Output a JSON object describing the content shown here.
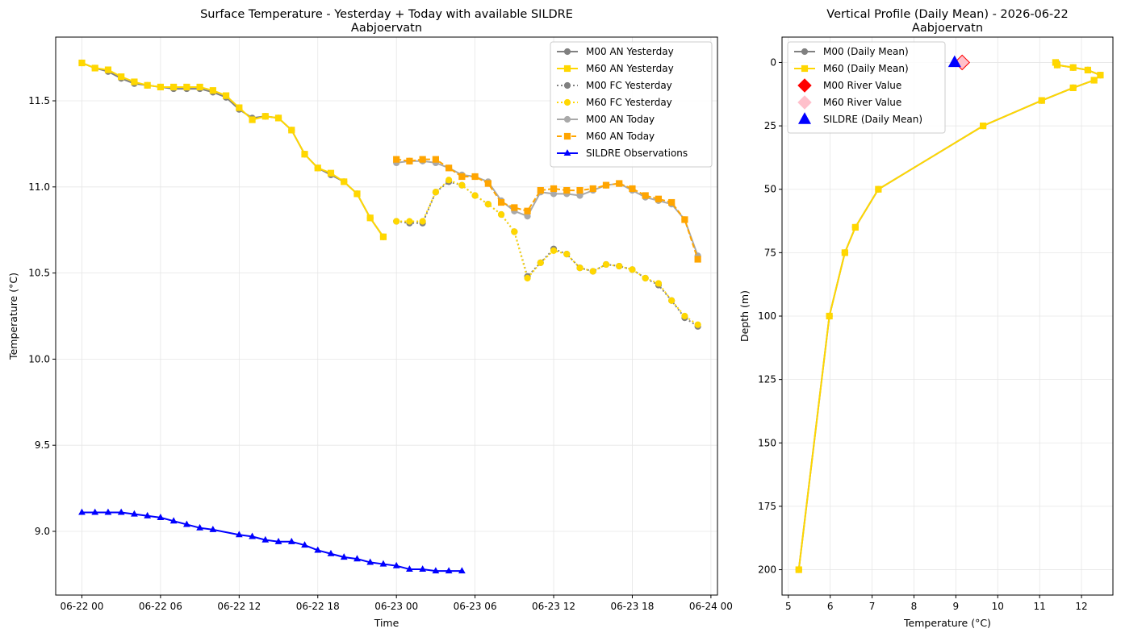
{
  "chart_data": [
    {
      "type": "line",
      "title": "Surface Temperature - Yesterday + Today with available SILDRE",
      "subtitle": "Aabjoervatn",
      "xlabel": "Time",
      "ylabel": "Temperature (°C)",
      "x_unit": "hours since 06-22 00",
      "xlim": [
        -2,
        48.5
      ],
      "ylim": [
        8.63,
        11.87
      ],
      "xticks": [
        {
          "x": 0,
          "label": "06-22 00"
        },
        {
          "x": 6,
          "label": "06-22 06"
        },
        {
          "x": 12,
          "label": "06-22 12"
        },
        {
          "x": 18,
          "label": "06-22 18"
        },
        {
          "x": 24,
          "label": "06-23 00"
        },
        {
          "x": 30,
          "label": "06-23 06"
        },
        {
          "x": 36,
          "label": "06-23 12"
        },
        {
          "x": 42,
          "label": "06-23 18"
        },
        {
          "x": 48,
          "label": "06-24 00"
        }
      ],
      "yticks": [
        {
          "y": 9.0,
          "label": "9.0"
        },
        {
          "y": 9.5,
          "label": "9.5"
        },
        {
          "y": 10.0,
          "label": "10.0"
        },
        {
          "y": 10.5,
          "label": "10.5"
        },
        {
          "y": 11.0,
          "label": "11.0"
        },
        {
          "y": 11.5,
          "label": "11.5"
        }
      ],
      "grid": true,
      "legend_position": "top-right",
      "series": [
        {
          "name": "M00 AN Yesterday",
          "color": "#808080",
          "dash": "solid",
          "marker": "circle",
          "x": [
            0,
            1,
            2,
            3,
            4,
            5,
            6,
            7,
            8,
            9,
            10,
            11,
            12,
            13,
            14,
            15,
            16,
            17,
            18,
            19,
            20,
            21,
            22,
            23
          ],
          "y": [
            11.72,
            11.69,
            11.67,
            11.63,
            11.6,
            11.59,
            11.58,
            11.57,
            11.57,
            11.57,
            11.55,
            11.52,
            11.45,
            11.4,
            11.41,
            11.4,
            11.33,
            11.19,
            11.11,
            11.07,
            11.03,
            10.96,
            10.82,
            10.71
          ]
        },
        {
          "name": "M60 AN Yesterday",
          "color": "#FFD700",
          "dash": "solid",
          "marker": "square",
          "x": [
            0,
            1,
            2,
            3,
            4,
            5,
            6,
            7,
            8,
            9,
            10,
            11,
            12,
            13,
            14,
            15,
            16,
            17,
            18,
            19,
            20,
            21,
            22,
            23
          ],
          "y": [
            11.72,
            11.69,
            11.68,
            11.64,
            11.61,
            11.59,
            11.58,
            11.58,
            11.58,
            11.58,
            11.56,
            11.53,
            11.46,
            11.39,
            11.41,
            11.4,
            11.33,
            11.19,
            11.11,
            11.08,
            11.03,
            10.96,
            10.82,
            10.71
          ]
        },
        {
          "name": "M00 FC Yesterday",
          "color": "#808080",
          "dash": "dotted",
          "marker": "circle",
          "x": [
            24,
            25,
            26,
            27,
            28,
            29,
            30,
            31,
            32,
            33,
            34,
            35,
            36,
            37,
            38,
            39,
            40,
            41,
            42,
            43,
            44,
            45,
            46,
            47
          ],
          "y": [
            10.8,
            10.79,
            10.79,
            10.97,
            11.03,
            11.01,
            10.95,
            10.9,
            10.84,
            10.74,
            10.48,
            10.56,
            10.64,
            10.61,
            10.53,
            10.51,
            10.55,
            10.54,
            10.52,
            10.47,
            10.43,
            10.34,
            10.24,
            10.19
          ]
        },
        {
          "name": "M60 FC Yesterday",
          "color": "#FFD700",
          "dash": "dotted",
          "marker": "circle",
          "x": [
            24,
            25,
            26,
            27,
            28,
            29,
            30,
            31,
            32,
            33,
            34,
            35,
            36,
            37,
            38,
            39,
            40,
            41,
            42,
            43,
            44,
            45,
            46,
            47
          ],
          "y": [
            10.8,
            10.8,
            10.8,
            10.97,
            11.04,
            11.01,
            10.95,
            10.9,
            10.84,
            10.74,
            10.47,
            10.56,
            10.63,
            10.61,
            10.53,
            10.51,
            10.55,
            10.54,
            10.52,
            10.47,
            10.44,
            10.34,
            10.25,
            10.2
          ]
        },
        {
          "name": "M00 AN Today",
          "color": "#A9A9A9",
          "dash": "solid",
          "marker": "circle",
          "x": [
            24,
            25,
            26,
            27,
            28,
            29,
            30,
            31,
            32,
            33,
            34,
            35,
            36,
            37,
            38,
            39,
            40,
            41,
            42,
            43,
            44,
            45,
            46,
            47
          ],
          "y": [
            11.14,
            11.15,
            11.15,
            11.14,
            11.11,
            11.07,
            11.06,
            11.03,
            10.92,
            10.86,
            10.83,
            10.97,
            10.96,
            10.96,
            10.95,
            10.98,
            11.01,
            11.02,
            10.98,
            10.94,
            10.92,
            10.9,
            10.81,
            10.6
          ]
        },
        {
          "name": "M60 AN Today",
          "color": "#FFA500",
          "dash": "dashed",
          "marker": "square",
          "x": [
            24,
            25,
            26,
            27,
            28,
            29,
            30,
            31,
            32,
            33,
            34,
            35,
            36,
            37,
            38,
            39,
            40,
            41,
            42,
            43,
            44,
            45,
            46,
            47
          ],
          "y": [
            11.16,
            11.15,
            11.16,
            11.16,
            11.11,
            11.06,
            11.06,
            11.02,
            10.91,
            10.88,
            10.86,
            10.98,
            10.99,
            10.98,
            10.98,
            10.99,
            11.01,
            11.02,
            10.99,
            10.95,
            10.93,
            10.91,
            10.81,
            10.58
          ]
        },
        {
          "name": "SILDRE Observations",
          "color": "#0000FF",
          "dash": "solid",
          "marker": "triangle",
          "x": [
            0,
            1,
            2,
            3,
            4,
            5,
            6,
            7,
            8,
            9,
            10,
            12,
            13,
            14,
            15,
            16,
            17,
            18,
            19,
            20,
            21,
            22,
            23,
            24,
            25,
            26,
            27,
            28,
            29
          ],
          "y": [
            9.11,
            9.11,
            9.11,
            9.11,
            9.1,
            9.09,
            9.08,
            9.06,
            9.04,
            9.02,
            9.01,
            8.98,
            8.97,
            8.95,
            8.94,
            8.94,
            8.92,
            8.89,
            8.87,
            8.85,
            8.84,
            8.82,
            8.81,
            8.8,
            8.78,
            8.78,
            8.77,
            8.77,
            8.77
          ]
        }
      ]
    },
    {
      "type": "line",
      "title": "Vertical Profile (Daily Mean) - 2026-06-22",
      "subtitle": "Aabjoervatn",
      "xlabel": "Temperature (°C)",
      "ylabel": "Depth (m)",
      "xlim": [
        4.85,
        12.75
      ],
      "ylim": [
        210,
        -10
      ],
      "y_inverted": true,
      "xticks": [
        {
          "x": 5,
          "label": "5"
        },
        {
          "x": 6,
          "label": "6"
        },
        {
          "x": 7,
          "label": "7"
        },
        {
          "x": 8,
          "label": "8"
        },
        {
          "x": 9,
          "label": "9"
        },
        {
          "x": 10,
          "label": "10"
        },
        {
          "x": 11,
          "label": "11"
        },
        {
          "x": 12,
          "label": "12"
        }
      ],
      "yticks": [
        {
          "y": 0,
          "label": "0"
        },
        {
          "y": 25,
          "label": "25"
        },
        {
          "y": 50,
          "label": "50"
        },
        {
          "y": 75,
          "label": "75"
        },
        {
          "y": 100,
          "label": "100"
        },
        {
          "y": 125,
          "label": "125"
        },
        {
          "y": 150,
          "label": "150"
        },
        {
          "y": 175,
          "label": "175"
        },
        {
          "y": 200,
          "label": "200"
        }
      ],
      "grid": true,
      "legend_position": "top-left",
      "series": [
        {
          "name": "M00 (Daily Mean)",
          "color": "#808080",
          "dash": "solid",
          "marker": "circle",
          "temperature": [
            11.4,
            11.42,
            11.8,
            12.15,
            12.45,
            12.3,
            11.8,
            11.05,
            9.65,
            7.15,
            6.6,
            6.35,
            5.98,
            5.25
          ],
          "depth": [
            0,
            1,
            2,
            3,
            5,
            7,
            10,
            15,
            25,
            50,
            65,
            75,
            100,
            200
          ]
        },
        {
          "name": "M60 (Daily Mean)",
          "color": "#FFD700",
          "dash": "solid",
          "marker": "square",
          "temperature": [
            11.38,
            11.42,
            11.8,
            12.15,
            12.45,
            12.3,
            11.8,
            11.05,
            9.65,
            7.15,
            6.6,
            6.35,
            5.98,
            5.25
          ],
          "depth": [
            0,
            1,
            2,
            3,
            5,
            7,
            10,
            15,
            25,
            50,
            65,
            75,
            100,
            200
          ]
        },
        {
          "name": "M00 River Value",
          "color": "#FF0000",
          "marker": "diamond",
          "temperature": [
            9.15
          ],
          "depth": [
            0
          ]
        },
        {
          "name": "M60 River Value",
          "color": "#FFC0CB",
          "marker": "diamond",
          "temperature": [
            9.15
          ],
          "depth": [
            0
          ]
        },
        {
          "name": "SILDRE (Daily Mean)",
          "color": "#0000FF",
          "marker": "triangle",
          "temperature": [
            8.97
          ],
          "depth": [
            0
          ]
        }
      ]
    }
  ]
}
